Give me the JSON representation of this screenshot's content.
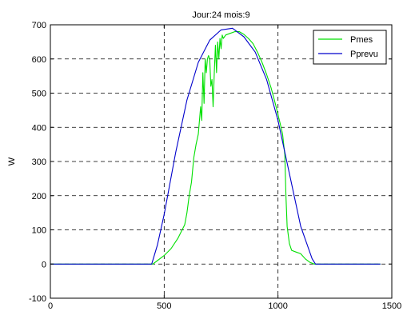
{
  "chart_data": {
    "type": "line",
    "title": "Jour:24 mois:9",
    "xlabel": "",
    "ylabel": "W",
    "xlim": [
      0,
      1500
    ],
    "ylim": [
      -100,
      700
    ],
    "xticks": [
      0,
      500,
      1000,
      1500
    ],
    "yticks": [
      -100,
      0,
      100,
      200,
      300,
      400,
      500,
      600,
      700
    ],
    "grid": "dashed at x = 500, 1000 and every y tick",
    "legend_position": "top-right",
    "series": [
      {
        "name": "Pmes",
        "color": "#00e000",
        "x": [
          0,
          440,
          450,
          470,
          500,
          530,
          560,
          590,
          600,
          610,
          620,
          630,
          640,
          650,
          660,
          665,
          670,
          675,
          680,
          685,
          690,
          695,
          700,
          705,
          710,
          715,
          720,
          725,
          730,
          735,
          740,
          745,
          750,
          755,
          760,
          770,
          790,
          810,
          830,
          850,
          870,
          890,
          910,
          930,
          950,
          970,
          990,
          1010,
          1020,
          1030,
          1035,
          1040,
          1050,
          1060,
          1080,
          1100,
          1120,
          1140,
          1160,
          1200,
          1450
        ],
        "y": [
          0,
          0,
          0,
          10,
          25,
          45,
          75,
          115,
          150,
          200,
          240,
          310,
          350,
          380,
          460,
          420,
          560,
          470,
          600,
          560,
          600,
          610,
          600,
          520,
          540,
          460,
          560,
          640,
          560,
          650,
          600,
          660,
          630,
          670,
          660,
          670,
          675,
          680,
          680,
          672,
          660,
          645,
          620,
          590,
          555,
          515,
          465,
          410,
          380,
          320,
          200,
          110,
          60,
          40,
          35,
          30,
          15,
          5,
          0,
          0,
          0
        ]
      },
      {
        "name": "Pprevu",
        "color": "#0000cc",
        "x": [
          0,
          445,
          470,
          500,
          550,
          600,
          650,
          700,
          750,
          800,
          850,
          900,
          950,
          1000,
          1050,
          1100,
          1150,
          1165,
          1450
        ],
        "y": [
          0,
          0,
          55,
          145,
          325,
          480,
          590,
          655,
          685,
          690,
          665,
          620,
          540,
          420,
          265,
          110,
          15,
          0,
          0
        ]
      }
    ]
  }
}
